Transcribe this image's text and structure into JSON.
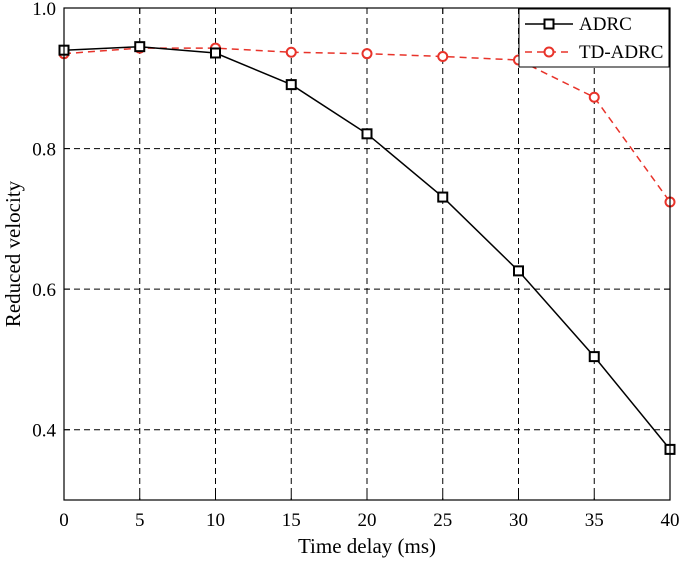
{
  "chart_data": {
    "type": "line",
    "title": "",
    "xlabel": "Time delay (ms)",
    "ylabel": "Reduced velocity",
    "xlim": [
      0,
      40
    ],
    "ylim": [
      0.3,
      1.0
    ],
    "xticks": [
      0,
      5,
      10,
      15,
      20,
      25,
      30,
      35,
      40
    ],
    "yticks": [
      0.4,
      0.6,
      0.8,
      1.0
    ],
    "xtick_labels": [
      "0",
      "5",
      "10",
      "15",
      "20",
      "25",
      "30",
      "35",
      "40"
    ],
    "ytick_labels": [
      "0.4",
      "0.6",
      "0.8",
      "1.0"
    ],
    "grid": true,
    "legend_position": "top-right",
    "x": [
      0,
      5,
      10,
      15,
      20,
      25,
      30,
      35,
      40
    ],
    "series": [
      {
        "name": "ADRC",
        "values": [
          0.94,
          0.945,
          0.936,
          0.891,
          0.821,
          0.731,
          0.626,
          0.504,
          0.372
        ],
        "color": "#000000",
        "marker": "square",
        "line": "solid"
      },
      {
        "name": "TD-ADRC",
        "values": [
          0.935,
          0.943,
          0.943,
          0.937,
          0.935,
          0.931,
          0.926,
          0.873,
          0.724
        ],
        "color": "#e8332a",
        "marker": "circle",
        "line": "dashed"
      }
    ]
  }
}
